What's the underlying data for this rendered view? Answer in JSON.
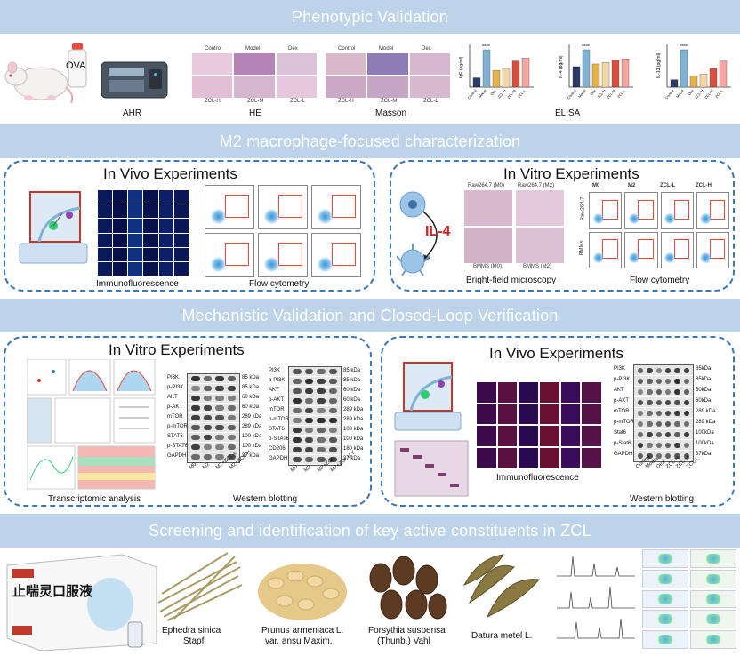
{
  "sections": {
    "s1": "Phenotypic Validation",
    "s2": "M2 macrophage-focused characterization",
    "s3": "Mechanistic Validation and Closed-Loop Verification",
    "s4": "Screening and identification of key active constituents in ZCL"
  },
  "phenotypic": {
    "ova": "OVA",
    "ahr": "AHR",
    "he": "HE",
    "masson": "Masson",
    "elisa": "ELISA",
    "he_headers": [
      "Control",
      "Model",
      "Dex"
    ],
    "he_footers": [
      "ZCL-H",
      "ZCL-M",
      "ZCL-L"
    ],
    "masson_headers": [
      "Control",
      "Model",
      "Dex"
    ],
    "masson_footers": [
      "ZCL-H",
      "ZCL-M",
      "ZCL-L"
    ],
    "bar_groups": [
      "Control",
      "Model",
      "Dex",
      "ZCL-H",
      "ZCL-M",
      "ZCL-L"
    ],
    "y_labels": [
      "IgE (ng/ml)",
      "IL-4 (pg/ml)",
      "IL-13 (pg/ml)"
    ],
    "sig_marks": [
      "####",
      "####",
      "####"
    ],
    "bar_colors": [
      "#2b3a67",
      "#7fb3d5",
      "#e8b04b",
      "#f3d6a8",
      "#d94f3d",
      "#f4a6a0"
    ]
  },
  "m2": {
    "invivo_title": "In Vivo Experiments",
    "invitro_title": "In Vitro Experiments",
    "if_label": "Immunofluorescence",
    "flow_label": "Flow cytometry",
    "il4": "IL-4",
    "raw_m0": "Raw264.7 (M0)",
    "raw_m2": "Raw264.7 (M2)",
    "bmm_m0": "BMMS (M0)",
    "bmm_m2": "BMMS (M2)",
    "bf_label": "Bright-field microscopy",
    "flow2_label": "Flow cytometry",
    "flow_cols": [
      "M0",
      "M2",
      "ZCL-L",
      "ZCL-H"
    ],
    "flow_rows": [
      "Raw264.7",
      "BMMs"
    ]
  },
  "mech": {
    "invitro_title": "In Vitro Experiments",
    "invivo_title": "In Vivo Experiments",
    "transcriptomic": "Transcriptomic analysis",
    "wb_label": "Western blotting",
    "if_label": "Immunofluorescence",
    "wb2_label": "Western blotting",
    "blot1_rows": [
      "PI3K",
      "p-PI3K",
      "AKT",
      "p-AKT",
      "mTOR",
      "p-mTOR",
      "STAT6",
      "p-STAT6",
      "GAPDH"
    ],
    "blot1_kda": [
      "85 kDa",
      "85 kDa",
      "60 kDa",
      "60 kDa",
      "289 kDa",
      "289 kDa",
      "100 kDa",
      "100 kDa",
      "37 kDa"
    ],
    "blot1_lanes": [
      "M0",
      "M2",
      "M2+ZCL-L",
      "M2+ZCL-H"
    ],
    "blot2_rows": [
      "PI3K",
      "p-PI3K",
      "AKT",
      "p-AKT",
      "mTOR",
      "p-mTOR",
      "STAT6",
      "p-STAT6",
      "CD206",
      "GAPDH"
    ],
    "blot2_kda": [
      "85 kDa",
      "85 kDa",
      "60 kDa",
      "60 kDa",
      "289 kDa",
      "289 kDa",
      "100 kDa",
      "100 kDa",
      "180 kDa",
      "37 kDa"
    ],
    "blot2_lanes": [
      "M0",
      "M2",
      "M2+ZCL",
      "M2+ZCL+LY"
    ],
    "blot3_rows": [
      "PI3K",
      "p-PI3K",
      "AKT",
      "p-AKT",
      "mTOR",
      "p-mTOR",
      "Stat6",
      "p-Stat6",
      "GAPDH"
    ],
    "blot3_kda": [
      "85kDa",
      "85kDa",
      "60kDa",
      "60kDa",
      "289 kDa",
      "289 kDa",
      "100kDa",
      "100kDa",
      "37kDa"
    ],
    "blot3_lanes": [
      "Control",
      "Model",
      "Dex",
      "ZCL-H",
      "ZCL-M",
      "ZCL-L"
    ]
  },
  "screen": {
    "product_name": "止喘灵口服液",
    "herbs": [
      {
        "line1": "Ephedra sinica",
        "line2": "Stapf."
      },
      {
        "line1": "Prunus armeniaca L.",
        "line2": "var. ansu Maxim."
      },
      {
        "line1": "Forsythia suspensa",
        "line2": "(Thunb.) Vahl"
      },
      {
        "line1": "Datura metel L.",
        "line2": ""
      }
    ]
  }
}
